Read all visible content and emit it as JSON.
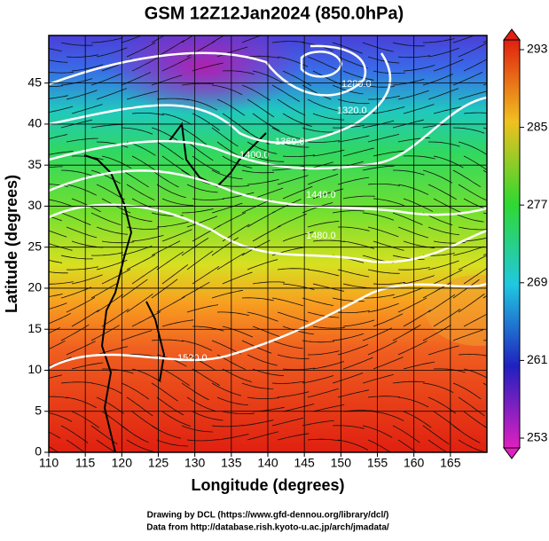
{
  "chart_data": {
    "type": "map",
    "title": "GSM 12Z12Jan2024 (850.0hPa)",
    "xlabel": "Longitude (degrees)",
    "ylabel": "Latitude  (degrees)",
    "xlim": [
      110,
      170
    ],
    "xticks": [
      110,
      115,
      120,
      125,
      130,
      135,
      140,
      145,
      150,
      155,
      160,
      165
    ],
    "ylim": [
      0,
      50.8
    ],
    "yticks": [
      0,
      5,
      10,
      15,
      20,
      25,
      30,
      35,
      40,
      45
    ],
    "grid": true,
    "colorbar": {
      "lim": [
        253,
        293
      ],
      "ticks": [
        253,
        261,
        269,
        277,
        285,
        293
      ]
    },
    "contour_labels": [
      "1520.0",
      "1480.0",
      "1440.0",
      "1400.0",
      "1360.0",
      "1320.0",
      "1280.0"
    ],
    "credits": [
      "Drawing by DCL (https://www.gfd-dennou.org/library/dcl/)",
      "Data from http://database.rish.kyoto-u.ac.jp/arch/jmadata/"
    ]
  }
}
